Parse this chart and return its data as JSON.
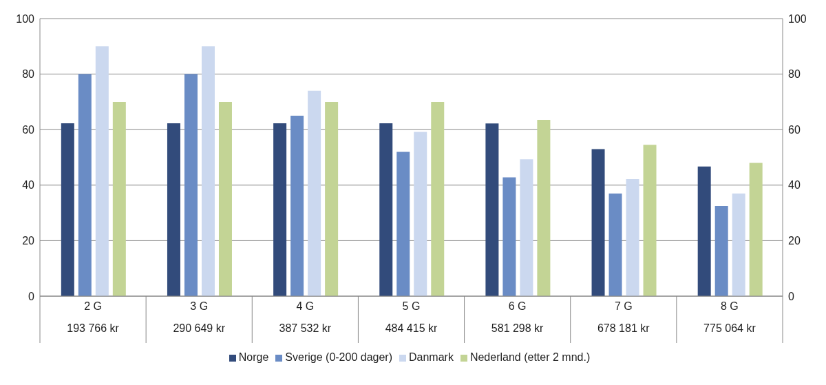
{
  "chart_data": {
    "type": "bar",
    "categories": [
      "2 G\n193 766 kr",
      "3 G\n290 649 kr",
      "4 G\n387 532 kr",
      "5 G\n484 415 kr",
      "6 G\n581 298 kr",
      "7 G\n678 181 kr",
      "8 G\n775 064 kr"
    ],
    "series": [
      {
        "name": "Norge",
        "color": "#324b7b",
        "values": [
          62.3,
          62.3,
          62.3,
          62.3,
          62.2,
          53,
          46.7
        ]
      },
      {
        "name": "Sverige (0-200 dager)",
        "color": "#6a8cc5",
        "values": [
          80,
          80,
          65,
          52,
          42.8,
          37,
          32.5
        ]
      },
      {
        "name": "Danmark",
        "color": "#cbd8ef",
        "values": [
          90,
          90,
          74,
          59.2,
          49.3,
          42.2,
          37
        ]
      },
      {
        "name": "Nederland (etter 2 mnd.)",
        "color": "#c3d495",
        "values": [
          70,
          70,
          70,
          70,
          63.5,
          54.5,
          48
        ]
      }
    ],
    "ylim": [
      0,
      100
    ],
    "yticks": [
      0,
      20,
      40,
      60,
      80,
      100
    ],
    "y2lim": [
      0,
      100
    ],
    "y2ticks": [
      0,
      20,
      40,
      60,
      80,
      100
    ],
    "grid": "y",
    "legend": "bottom"
  }
}
